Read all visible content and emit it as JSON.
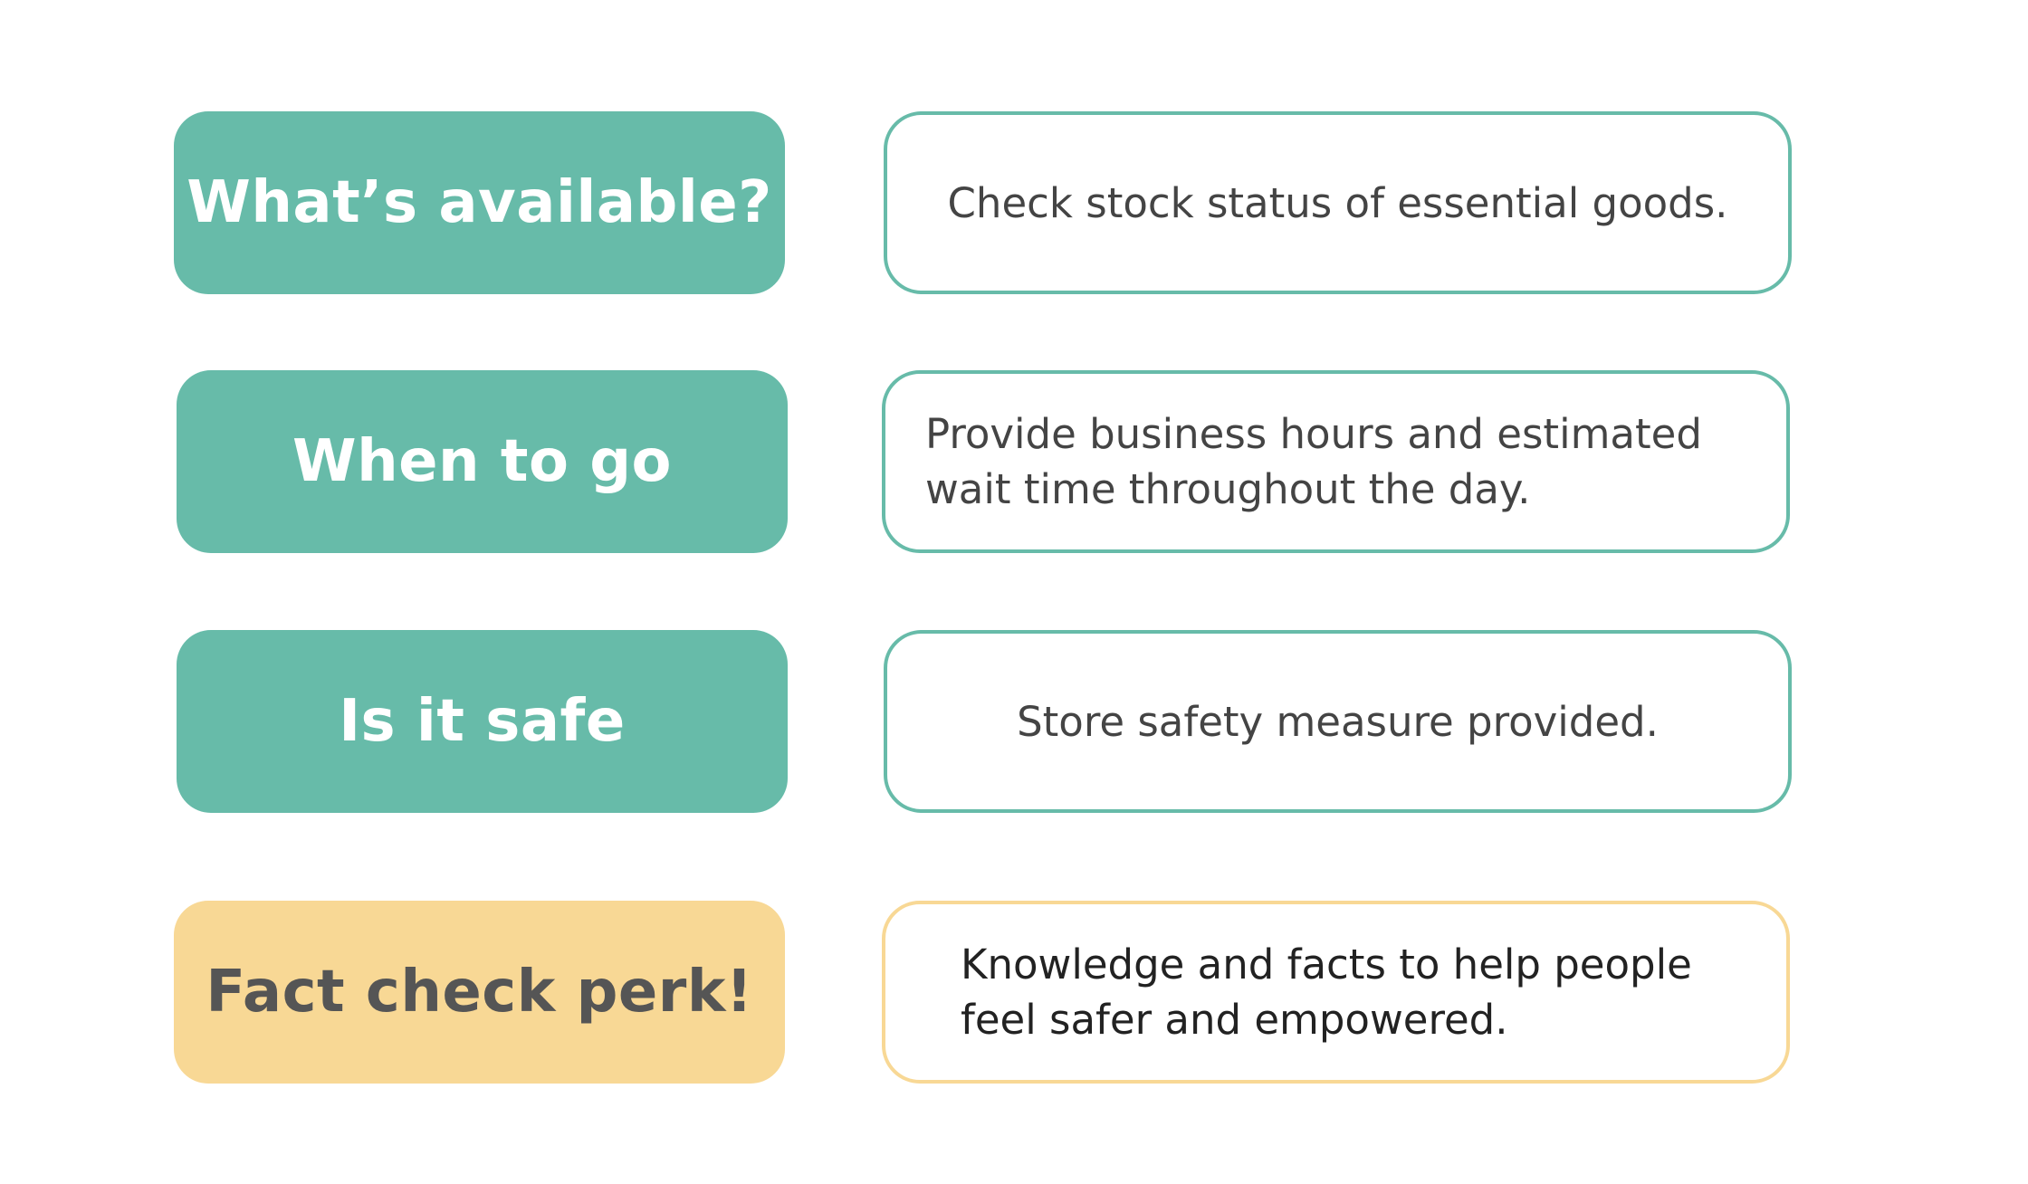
{
  "colors": {
    "teal": "#67bba9",
    "yellow": "#f8d895",
    "label_text_light": "#ffffff",
    "label_text_dark": "#555555",
    "desc_text": "#444444"
  },
  "rows": [
    {
      "label": "What’s available?",
      "description_lines": [
        "Check stock status of essential goods."
      ]
    },
    {
      "label": "When to go",
      "description_lines": [
        "Provide business hours and estimated",
        "wait time throughout the day."
      ]
    },
    {
      "label": "Is it safe",
      "description_lines": [
        "Store safety measure provided."
      ]
    },
    {
      "label": "Fact check perk!",
      "description_lines": [
        "Knowledge and facts to help people",
        "feel safer and empowered."
      ]
    }
  ]
}
